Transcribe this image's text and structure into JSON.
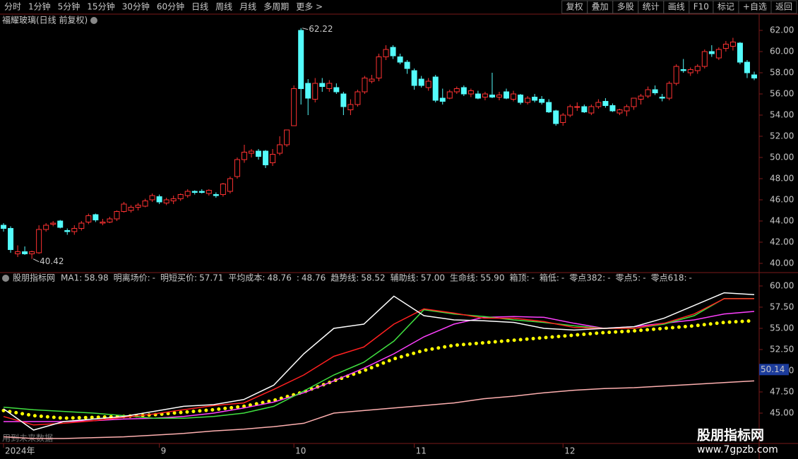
{
  "toolbar": {
    "left": [
      "分时",
      "1分钟",
      "5分钟",
      "15分钟",
      "30分钟",
      "60分钟",
      "日线",
      "周线",
      "月线",
      "多周期",
      "更多 >"
    ],
    "active_index": 6,
    "right": [
      "复权",
      "叠加",
      "多股",
      "统计",
      "画线",
      "F10",
      "标记",
      "+自选",
      "返回"
    ]
  },
  "chart_data": [
    {
      "type": "candlestick",
      "title": "福耀玻璃(日线 前复权)",
      "up_color": "#ff3232",
      "down_color": "#54fcfc",
      "ylim": [
        39.33,
        62.87
      ],
      "yticks": [
        {
          "value": 40,
          "label": "40.00"
        },
        {
          "value": 42,
          "label": "42.00"
        },
        {
          "value": 44,
          "label": "44.00"
        },
        {
          "value": 46,
          "label": "46.00"
        },
        {
          "value": 48,
          "label": "48.00"
        },
        {
          "value": 50,
          "label": "50.00"
        },
        {
          "value": 52,
          "label": "52.00"
        },
        {
          "value": 54,
          "label": "54.00"
        },
        {
          "value": 56,
          "label": "56.00"
        },
        {
          "value": 58,
          "label": "58.00"
        },
        {
          "value": 60,
          "label": "60.00"
        },
        {
          "value": 62,
          "label": "62.00"
        }
      ],
      "annotations": [
        62.22,
        40.42
      ],
      "categories": [
        "2024年",
        null,
        null,
        null,
        null,
        null,
        null,
        null,
        null,
        null,
        null,
        null,
        null,
        null,
        null,
        null,
        null,
        null,
        null,
        null,
        null,
        null,
        "9",
        null,
        null,
        null,
        null,
        null,
        null,
        null,
        null,
        null,
        null,
        null,
        null,
        null,
        null,
        null,
        null,
        null,
        null,
        "10",
        null,
        null,
        null,
        null,
        null,
        null,
        null,
        null,
        null,
        null,
        null,
        null,
        null,
        null,
        null,
        null,
        "11",
        null,
        null,
        null,
        null,
        null,
        null,
        null,
        null,
        null,
        null,
        null,
        null,
        null,
        null,
        null,
        null,
        null,
        null,
        null,
        null,
        "12",
        null,
        null,
        null,
        null,
        null,
        null,
        null,
        null,
        null,
        null,
        null,
        null,
        null,
        null,
        null,
        null,
        null,
        null,
        null,
        null,
        null,
        null,
        null,
        null,
        null,
        null,
        null
      ],
      "ohlc": [
        [
          43.6,
          43.8,
          43.0,
          43.3
        ],
        [
          43.3,
          43.5,
          41.0,
          41.3
        ],
        [
          40.9,
          41.7,
          40.6,
          41.1
        ],
        [
          41.1,
          41.6,
          40.8,
          40.9
        ],
        [
          40.9,
          41.2,
          40.42,
          41.1
        ],
        [
          41.0,
          43.6,
          40.9,
          43.2
        ],
        [
          43.2,
          43.8,
          43.0,
          43.6
        ],
        [
          43.7,
          44.0,
          43.5,
          43.8
        ],
        [
          44.0,
          44.1,
          43.3,
          43.4
        ],
        [
          43.1,
          43.3,
          42.7,
          43.0
        ],
        [
          43.0,
          43.6,
          42.7,
          43.3
        ],
        [
          43.3,
          44.0,
          43.1,
          43.8
        ],
        [
          43.9,
          44.7,
          43.7,
          44.5
        ],
        [
          44.6,
          44.7,
          43.9,
          44.1
        ],
        [
          43.8,
          44.2,
          43.6,
          43.9
        ],
        [
          43.9,
          44.4,
          43.8,
          44.2
        ],
        [
          44.2,
          45.0,
          44.0,
          44.9
        ],
        [
          44.9,
          45.8,
          44.8,
          45.6
        ],
        [
          45.0,
          45.5,
          44.8,
          45.3
        ],
        [
          45.3,
          45.7,
          45.0,
          45.5
        ],
        [
          45.4,
          46.1,
          45.3,
          45.9
        ],
        [
          46.0,
          46.6,
          45.8,
          46.4
        ],
        [
          46.3,
          46.5,
          45.6,
          45.8
        ],
        [
          45.7,
          46.2,
          45.5,
          46.0
        ],
        [
          45.9,
          46.4,
          45.6,
          46.1
        ],
        [
          46.1,
          46.6,
          45.9,
          46.5
        ],
        [
          46.4,
          47.0,
          46.2,
          46.8
        ],
        [
          46.8,
          46.9,
          46.5,
          46.7
        ],
        [
          46.8,
          47.0,
          46.6,
          46.7
        ],
        [
          46.6,
          47.0,
          46.4,
          46.9
        ],
        [
          46.5,
          46.7,
          46.2,
          46.4
        ],
        [
          46.5,
          47.6,
          46.3,
          47.5
        ],
        [
          46.8,
          48.2,
          46.6,
          48.0
        ],
        [
          48.2,
          50.0,
          48.0,
          49.8
        ],
        [
          49.8,
          51.2,
          49.5,
          50.5
        ],
        [
          50.4,
          50.8,
          50.0,
          50.6
        ],
        [
          50.6,
          50.8,
          49.8,
          50.1
        ],
        [
          50.6,
          50.7,
          49.0,
          49.3
        ],
        [
          49.5,
          50.8,
          49.2,
          50.3
        ],
        [
          50.4,
          52.0,
          50.2,
          51.2
        ],
        [
          51.2,
          52.6,
          51.0,
          52.6
        ],
        [
          53.0,
          56.8,
          53.0,
          56.5
        ],
        [
          62.0,
          62.22,
          55.0,
          56.5
        ],
        [
          57.0,
          57.4,
          54.0,
          55.6
        ],
        [
          55.5,
          57.5,
          55.2,
          57.0
        ],
        [
          57.0,
          57.5,
          56.2,
          56.7
        ],
        [
          56.5,
          57.3,
          56.2,
          57.0
        ],
        [
          56.6,
          57.0,
          56.0,
          56.2
        ],
        [
          56.0,
          56.2,
          54.0,
          54.8
        ],
        [
          54.5,
          55.5,
          54.0,
          55.0
        ],
        [
          55.0,
          56.4,
          54.8,
          56.2
        ],
        [
          56.2,
          57.7,
          56.0,
          57.5
        ],
        [
          57.2,
          57.8,
          57.0,
          57.4
        ],
        [
          57.5,
          59.8,
          57.2,
          59.5
        ],
        [
          59.5,
          60.6,
          59.2,
          60.2
        ],
        [
          60.4,
          60.6,
          59.3,
          59.6
        ],
        [
          59.5,
          59.8,
          58.8,
          59.0
        ],
        [
          59.0,
          59.2,
          57.9,
          58.4
        ],
        [
          58.2,
          58.4,
          56.4,
          56.8
        ],
        [
          57.4,
          57.7,
          56.6,
          56.8
        ],
        [
          56.6,
          57.5,
          56.3,
          57.2
        ],
        [
          57.6,
          57.8,
          55.2,
          55.4
        ],
        [
          55.6,
          56.5,
          55.0,
          55.3
        ],
        [
          55.6,
          56.4,
          55.5,
          56.2
        ],
        [
          56.2,
          56.7,
          56.0,
          56.5
        ],
        [
          56.6,
          56.8,
          55.8,
          56.0
        ],
        [
          56.0,
          56.5,
          55.7,
          56.3
        ],
        [
          56.0,
          56.3,
          55.5,
          55.6
        ],
        [
          55.7,
          56.2,
          55.4,
          56.0
        ],
        [
          55.9,
          58.0,
          55.6,
          55.7
        ],
        [
          55.7,
          56.2,
          55.4,
          55.9
        ],
        [
          56.2,
          56.5,
          55.5,
          55.6
        ],
        [
          55.5,
          56.3,
          55.3,
          56.0
        ],
        [
          55.9,
          56.0,
          55.0,
          55.2
        ],
        [
          55.2,
          55.8,
          55.0,
          55.6
        ],
        [
          55.7,
          56.0,
          55.2,
          55.4
        ],
        [
          55.5,
          55.8,
          55.0,
          55.2
        ],
        [
          55.2,
          55.5,
          54.2,
          54.3
        ],
        [
          54.4,
          54.5,
          53.0,
          53.2
        ],
        [
          53.3,
          54.2,
          53.0,
          54.0
        ],
        [
          54.0,
          55.0,
          53.8,
          54.8
        ],
        [
          54.8,
          55.2,
          54.4,
          54.8
        ],
        [
          54.8,
          55.0,
          54.2,
          54.3
        ],
        [
          54.2,
          55.0,
          54.0,
          54.8
        ],
        [
          54.8,
          55.5,
          54.6,
          55.2
        ],
        [
          55.3,
          55.6,
          54.7,
          54.9
        ],
        [
          54.9,
          55.1,
          54.3,
          54.4
        ],
        [
          54.2,
          54.6,
          54.0,
          54.5
        ],
        [
          54.4,
          55.0,
          53.9,
          54.8
        ],
        [
          54.8,
          55.6,
          54.5,
          55.6
        ],
        [
          55.5,
          56.0,
          55.0,
          55.8
        ],
        [
          55.8,
          56.7,
          55.6,
          56.4
        ],
        [
          56.4,
          56.8,
          55.9,
          56.1
        ],
        [
          55.7,
          56.0,
          55.3,
          55.6
        ],
        [
          55.6,
          57.2,
          55.4,
          57.0
        ],
        [
          57.0,
          58.8,
          56.8,
          58.6
        ],
        [
          58.3,
          59.3,
          58.0,
          58.2
        ],
        [
          58.0,
          58.5,
          57.7,
          58.3
        ],
        [
          58.2,
          58.8,
          57.9,
          58.6
        ],
        [
          58.6,
          60.2,
          58.4,
          60.0
        ],
        [
          60.0,
          60.6,
          59.5,
          59.8
        ],
        [
          59.4,
          60.4,
          59.2,
          60.2
        ],
        [
          60.3,
          61.0,
          60.0,
          60.7
        ],
        [
          60.5,
          61.3,
          60.1,
          60.9
        ],
        [
          60.8,
          60.9,
          58.8,
          59.0
        ],
        [
          59.0,
          59.2,
          57.5,
          58.0
        ],
        [
          57.8,
          58.1,
          57.3,
          57.5
        ]
      ]
    },
    {
      "type": "line",
      "title": "股朋指标网",
      "legend": [
        {
          "label": "MA1:",
          "value": "58.98",
          "color": "#ffffff"
        },
        {
          "label": "明离场价:",
          "value": "-",
          "color": "#ff88ff"
        },
        {
          "label": "明短买价:",
          "value": "57.71",
          "color": "#e0b060"
        },
        {
          "label": "平均成本:",
          "value": "48.76",
          "color": "#ffffff"
        },
        {
          "label": ":",
          "value": "48.76",
          "color": "#ff5050"
        },
        {
          "label": "趋势线:",
          "value": "58.52",
          "color": "#40e040"
        },
        {
          "label": "辅助线:",
          "value": "57.00",
          "color": "#ff40ff"
        },
        {
          "label": "生命线:",
          "value": "55.90",
          "color": "#ffff00"
        },
        {
          "label": "箱顶:",
          "value": "-",
          "color": "#a0a0a0"
        },
        {
          "label": "箱低:",
          "value": "-",
          "color": "#a0a0a0"
        },
        {
          "label": "零点382:",
          "value": "-",
          "color": "#a0a0a0"
        },
        {
          "label": "零点5:",
          "value": "-",
          "color": "#a0a0a0"
        },
        {
          "label": "零点618:",
          "value": "-",
          "color": "#a0a0a0"
        }
      ],
      "ylim": [
        41.42,
        61.08
      ],
      "yticks": [
        {
          "value": 45,
          "label": "45.00"
        },
        {
          "value": 47.5,
          "label": "47.50"
        },
        {
          "value": 50,
          "label": "50.00"
        },
        {
          "value": 52.5,
          "label": "52.50"
        },
        {
          "value": 55,
          "label": "55.00"
        },
        {
          "value": 57.5,
          "label": "57.50"
        },
        {
          "value": 60,
          "label": "60.00"
        }
      ],
      "current_value": 50.14,
      "series": [
        {
          "color": "#ffb0b0",
          "style": "solid",
          "values": [
            42.2,
            42.0,
            42.0,
            42.1,
            42.2,
            42.4,
            42.6,
            42.9,
            43.1,
            43.4,
            43.8,
            45.0,
            45.3,
            45.6,
            45.9,
            46.2,
            46.7,
            47.0,
            47.4,
            47.7,
            47.9,
            48.0,
            48.2,
            48.4,
            48.6,
            48.8
          ]
        },
        {
          "color": "#ffff00",
          "style": "dotted",
          "values": [
            45.3,
            44.7,
            44.4,
            44.5,
            44.6,
            44.8,
            45.1,
            45.4,
            45.8,
            46.5,
            47.5,
            48.8,
            50.0,
            51.4,
            52.4,
            53.0,
            53.3,
            53.6,
            53.9,
            54.2,
            54.5,
            54.7,
            55.0,
            55.3,
            55.7,
            55.9
          ]
        },
        {
          "color": "#ff40ff",
          "style": "solid",
          "values": [
            44.0,
            44.0,
            44.0,
            44.1,
            44.3,
            44.4,
            44.6,
            45.0,
            45.6,
            46.3,
            47.4,
            48.8,
            50.3,
            52.0,
            54.0,
            55.5,
            56.3,
            56.4,
            56.3,
            55.6,
            55.0,
            55.2,
            55.6,
            56.0,
            56.7,
            57.0
          ]
        },
        {
          "color": "#40e040",
          "style": "solid",
          "values": [
            45.7,
            45.4,
            45.2,
            45.0,
            44.7,
            44.4,
            44.4,
            44.6,
            45.0,
            45.8,
            47.6,
            49.5,
            51.0,
            53.5,
            57.2,
            56.7,
            56.4,
            56.0,
            55.7,
            55.3,
            55.0,
            55.0,
            55.5,
            56.5,
            58.52,
            58.52
          ]
        },
        {
          "color": "#ff2020",
          "style": "solid",
          "values": [
            44.6,
            43.6,
            43.8,
            44.1,
            44.5,
            44.9,
            45.4,
            45.9,
            46.2,
            47.8,
            49.5,
            51.7,
            52.8,
            55.5,
            57.3,
            56.8,
            56.2,
            56.2,
            55.8,
            55.1,
            55.0,
            55.0,
            55.6,
            56.7,
            58.5,
            58.5
          ]
        },
        {
          "color": "#ffffff",
          "style": "solid",
          "values": [
            45.5,
            43.0,
            44.0,
            44.3,
            44.6,
            45.2,
            45.8,
            46.0,
            46.6,
            48.3,
            52.0,
            55.0,
            55.5,
            58.8,
            56.5,
            56.0,
            55.9,
            55.7,
            55.0,
            54.8,
            55.0,
            55.2,
            56.2,
            57.7,
            59.2,
            58.98
          ]
        }
      ]
    }
  ],
  "footer_note": "用到未来数据",
  "watermark": {
    "title": "股朋指标网",
    "url": "www.7gpzb.com"
  }
}
